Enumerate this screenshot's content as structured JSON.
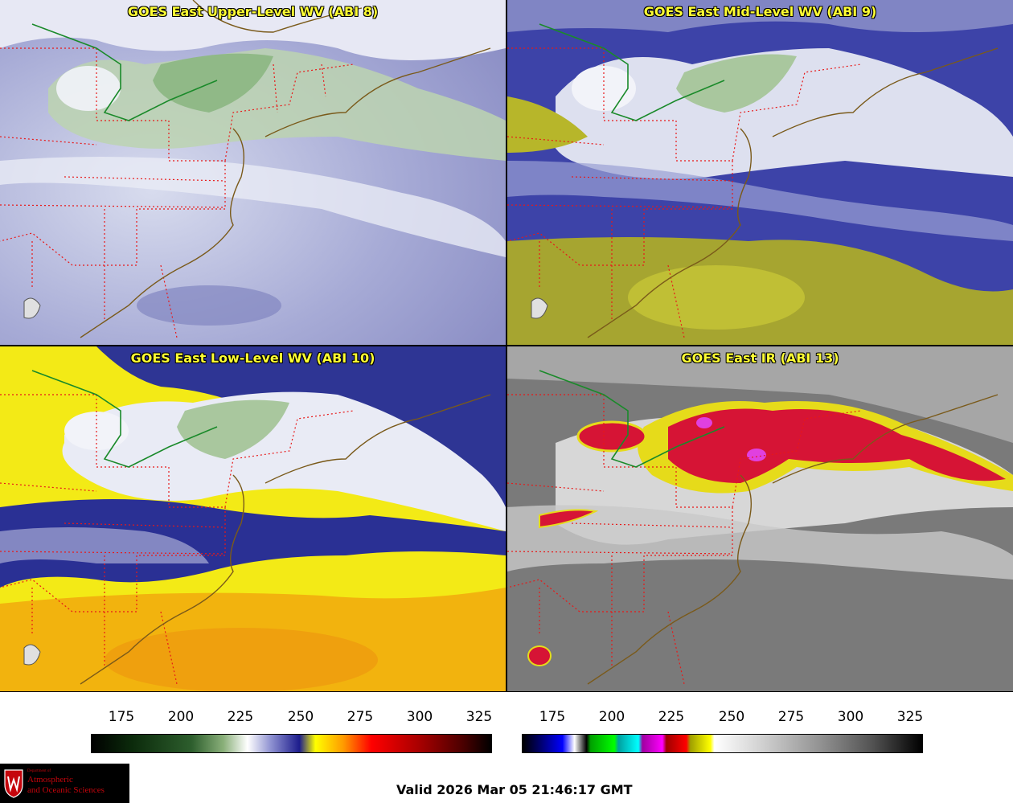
{
  "panels": [
    {
      "title": "GOES East Upper-Level WV (ABI 8)"
    },
    {
      "title": "GOES East Mid-Level WV (ABI 9)"
    },
    {
      "title": "GOES East Low-Level WV (ABI 10)"
    },
    {
      "title": "GOES East IR (ABI 13)"
    }
  ],
  "colorbars": {
    "wv": {
      "ticks": [
        "175",
        "200",
        "225",
        "250",
        "275",
        "300",
        "325"
      ]
    },
    "ir": {
      "ticks": [
        "175",
        "200",
        "225",
        "250",
        "275",
        "300",
        "325"
      ]
    }
  },
  "logo": {
    "dept": "Department of",
    "line1": "Atmospheric",
    "line2": "and Oceanic Sciences"
  },
  "valid_time": "Valid 2026 Mar 05 21:46:17 GMT"
}
